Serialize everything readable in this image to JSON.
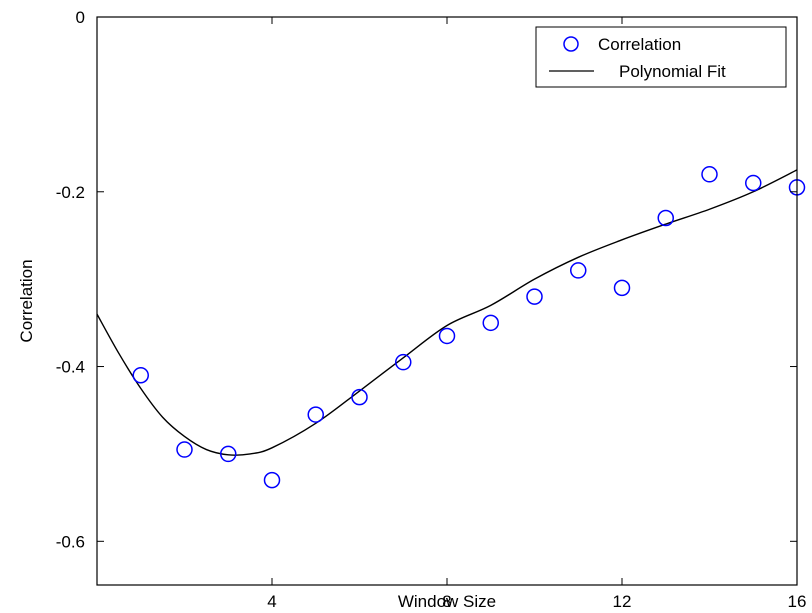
{
  "chart_data": {
    "type": "scatter",
    "xlabel": "Window Size",
    "ylabel": "Correlation",
    "xlim": [
      0,
      16
    ],
    "ylim": [
      -0.65,
      0
    ],
    "xticks": [
      4,
      8,
      12,
      16
    ],
    "yticks": [
      0,
      -0.2,
      -0.4,
      -0.6
    ],
    "xtick_labels": [
      "4",
      "8",
      "12",
      "16"
    ],
    "ytick_labels": [
      "0",
      "-0.2",
      "-0.4",
      "-0.6"
    ],
    "grid": false,
    "legend_position": "top-right",
    "series": [
      {
        "name": "Correlation",
        "type": "scatter",
        "marker": "open-circle",
        "color": "#0000ff",
        "x": [
          1,
          2,
          3,
          4,
          5,
          6,
          7,
          8,
          9,
          10,
          11,
          12,
          13,
          14,
          15,
          16
        ],
        "y": [
          -0.41,
          -0.495,
          -0.5,
          -0.53,
          -0.455,
          -0.435,
          -0.395,
          -0.365,
          -0.35,
          -0.32,
          -0.29,
          -0.31,
          -0.23,
          -0.18,
          -0.19,
          -0.195
        ]
      },
      {
        "name": "Polynomial Fit",
        "type": "line",
        "color": "#000000",
        "x": [
          0,
          0.5,
          1,
          1.5,
          2,
          2.5,
          3,
          3.5,
          4,
          5,
          6,
          7,
          8,
          9,
          10,
          11,
          12,
          13,
          14,
          15,
          16
        ],
        "y": [
          -0.34,
          -0.385,
          -0.425,
          -0.458,
          -0.48,
          -0.495,
          -0.501,
          -0.5,
          -0.493,
          -0.465,
          -0.428,
          -0.39,
          -0.353,
          -0.33,
          -0.3,
          -0.275,
          -0.255,
          -0.237,
          -0.22,
          -0.2,
          -0.175
        ]
      }
    ]
  }
}
